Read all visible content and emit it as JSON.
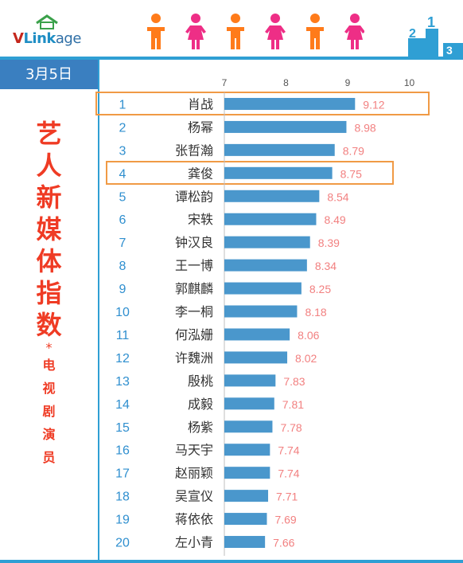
{
  "brand": {
    "part1": "V",
    "part2": "Link",
    "part3": "age"
  },
  "header": {
    "people_colors": [
      "#ff7b1a",
      "#ee2e86",
      "#ff7b1a",
      "#ee2e86",
      "#ff7b1a",
      "#ee2e86"
    ]
  },
  "date": "3月5日",
  "title": {
    "chars": [
      "艺",
      "人",
      "新",
      "媒",
      "体",
      "指",
      "数"
    ],
    "star": "*",
    "sub_chars": [
      "电",
      "视",
      "剧",
      "演",
      "员"
    ]
  },
  "colors": {
    "bar": "#4a97cc",
    "value": "#f28080",
    "rank": "#2f8fcf",
    "accent": "#2f9fd4",
    "title": "#ef3b24",
    "highlight": "#f09a45"
  },
  "chart_data": {
    "type": "bar",
    "orientation": "horizontal",
    "xlim": [
      7,
      10
    ],
    "xticks": [
      "7",
      "8",
      "9",
      "10"
    ],
    "ranks": [
      "1",
      "2",
      "3",
      "4",
      "5",
      "6",
      "7",
      "8",
      "9",
      "10",
      "11",
      "12",
      "13",
      "14",
      "15",
      "16",
      "17",
      "18",
      "19",
      "20"
    ],
    "categories": [
      "肖战",
      "杨幂",
      "张哲瀚",
      "龚俊",
      "谭松韵",
      "宋轶",
      "钟汉良",
      "王一博",
      "郭麒麟",
      "李一桐",
      "何泓姗",
      "许魏洲",
      "殷桃",
      "成毅",
      "杨紫",
      "马天宇",
      "赵丽颖",
      "吴宣仪",
      "蒋依依",
      "左小青"
    ],
    "values": [
      9.12,
      8.98,
      8.79,
      8.75,
      8.54,
      8.49,
      8.39,
      8.34,
      8.25,
      8.18,
      8.06,
      8.02,
      7.83,
      7.81,
      7.78,
      7.74,
      7.74,
      7.71,
      7.69,
      7.66
    ],
    "value_labels": [
      "9.12",
      "8.98",
      "8.79",
      "8.75",
      "8.54",
      "8.49",
      "8.39",
      "8.34",
      "8.25",
      "8.18",
      "8.06",
      "8.02",
      "7.83",
      "7.81",
      "7.78",
      "7.74",
      "7.74",
      "7.71",
      "7.69",
      "7.66"
    ],
    "highlighted_ranks": [
      1,
      4
    ]
  }
}
